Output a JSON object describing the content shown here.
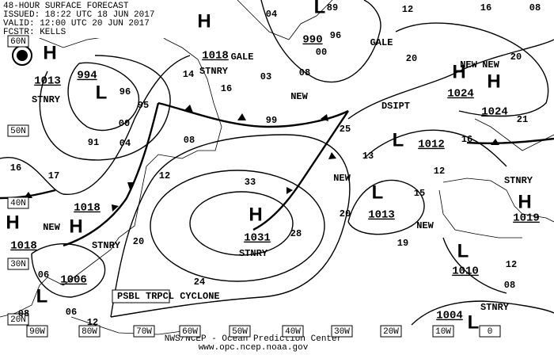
{
  "header": [
    "48-HOUR SURFACE FORECAST",
    "ISSUED: 18:22 UTC 18 JUN 2017",
    "VALID: 12:00 UTC 20 JUN 2017",
    "FCSTR: KELLS"
  ],
  "footer": [
    "NWS/NCEP - Ocean Prediction Center",
    "www.opc.ncep.noaa.gov"
  ],
  "lat_labels": [
    "60N",
    "50N",
    "40N",
    "30N",
    "20N"
  ],
  "lon_labels": [
    "90W",
    "80W",
    "70W",
    "60W",
    "50W",
    "40W",
    "30W",
    "20W",
    "10W",
    "0"
  ],
  "centers": [
    "H",
    "L",
    "H",
    "L",
    "H",
    "H",
    "L",
    "L",
    "H",
    "L",
    "H",
    "H",
    "H",
    "L",
    "L"
  ],
  "pressures": [
    "994",
    "1013",
    "1018",
    "990",
    "1024",
    "1024",
    "1012",
    "1013",
    "1031",
    "1010",
    "1019",
    "1018",
    "1018",
    "1006",
    "1004"
  ],
  "labels": [
    "STNRY",
    "STNRY",
    "GALE",
    "GALE",
    "NEW",
    "DSIPT",
    "STNRY",
    "STNRY",
    "NEW",
    "STNRY",
    "STNRY",
    "NEW",
    "NEW",
    "NEW",
    "PSBL TRPCL CYCLONE",
    "04",
    "96",
    "00",
    "03",
    "08",
    "99",
    "25",
    "13",
    "12",
    "20",
    "19",
    "15",
    "33",
    "28",
    "24",
    "20",
    "95",
    "96",
    "00",
    "91",
    "04",
    "08",
    "12",
    "16",
    "14",
    "17",
    "16",
    "20",
    "20",
    "21",
    "16",
    "16",
    "08",
    "12",
    "12",
    "08",
    "06",
    "06",
    "08",
    "12",
    "89",
    "NEW"
  ]
}
